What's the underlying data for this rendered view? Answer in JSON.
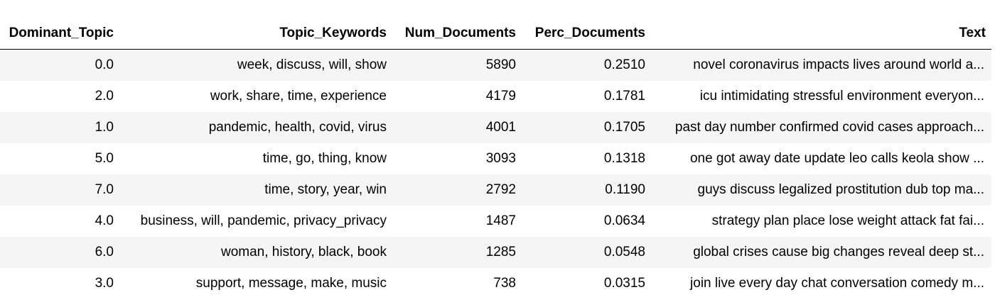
{
  "table": {
    "columns": [
      "Dominant_Topic",
      "Topic_Keywords",
      "Num_Documents",
      "Perc_Documents",
      "Text"
    ],
    "rows": [
      {
        "dominant_topic": "0.0",
        "topic_keywords": "week, discuss, will, show",
        "num_documents": "5890",
        "perc_documents": "0.2510",
        "text": "novel coronavirus impacts lives around world a..."
      },
      {
        "dominant_topic": "2.0",
        "topic_keywords": "work, share, time, experience",
        "num_documents": "4179",
        "perc_documents": "0.1781",
        "text": "icu intimidating stressful environment everyon..."
      },
      {
        "dominant_topic": "1.0",
        "topic_keywords": "pandemic, health, covid, virus",
        "num_documents": "4001",
        "perc_documents": "0.1705",
        "text": "past day number confirmed covid cases approach..."
      },
      {
        "dominant_topic": "5.0",
        "topic_keywords": "time, go, thing, know",
        "num_documents": "3093",
        "perc_documents": "0.1318",
        "text": "one got away date update leo calls keola show ..."
      },
      {
        "dominant_topic": "7.0",
        "topic_keywords": "time, story, year, win",
        "num_documents": "2792",
        "perc_documents": "0.1190",
        "text": "guys discuss legalized prostitution dub top ma..."
      },
      {
        "dominant_topic": "4.0",
        "topic_keywords": "business, will, pandemic, privacy_privacy",
        "num_documents": "1487",
        "perc_documents": "0.0634",
        "text": "strategy plan place lose weight attack fat fai..."
      },
      {
        "dominant_topic": "6.0",
        "topic_keywords": "woman, history, black, book",
        "num_documents": "1285",
        "perc_documents": "0.0548",
        "text": "global crises cause big changes reveal deep st..."
      },
      {
        "dominant_topic": "3.0",
        "topic_keywords": "support, message, make, music",
        "num_documents": "738",
        "perc_documents": "0.0315",
        "text": "join live every day chat conversation comedy m..."
      }
    ]
  }
}
